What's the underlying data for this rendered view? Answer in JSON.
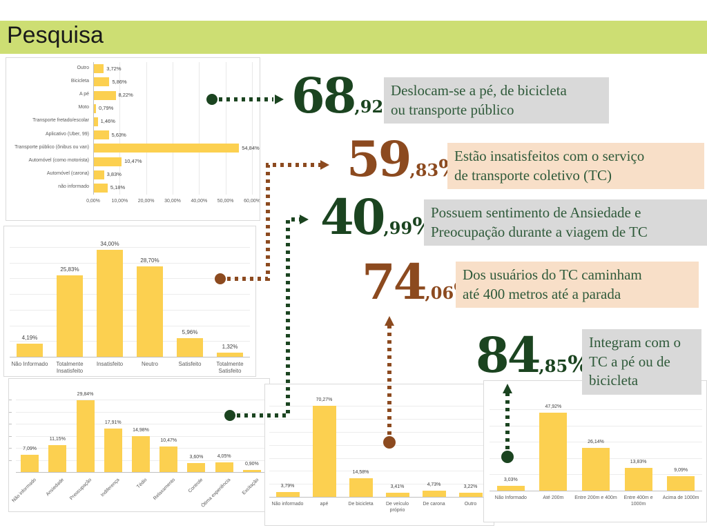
{
  "slide": {
    "title": "Pesquisa"
  },
  "colors": {
    "title_bar": "#CDDE73",
    "bar_fill": "#FCD050",
    "dark_green": "#1B4420",
    "brown": "#8C4A1F",
    "gray_box": "#D9D9D9",
    "peach_box": "#F8DFC8",
    "box_text_green": "#2F5A3A",
    "chart_label_gray": "#595959"
  },
  "chart_data": [
    {
      "type": "bar",
      "orientation": "horizontal",
      "title": "",
      "xlabel": "",
      "ylabel": "",
      "xlim": [
        0,
        60
      ],
      "categories": [
        "Outro",
        "Bicicleta",
        "A pé",
        "Moto",
        "Transporte fretado/escolar",
        "Aplicativo (Uber, 99)",
        "Transporte público (ônibus ou van)",
        "Automóvel (como motorista)",
        "Automóvel (carona)",
        "não informado"
      ],
      "values": [
        3.72,
        5.86,
        8.22,
        0.79,
        1.46,
        5.63,
        54.84,
        10.47,
        3.83,
        5.18
      ],
      "value_labels": [
        "3,72%",
        "5,86%",
        "8,22%",
        "0,79%",
        "1,46%",
        "5,63%",
        "54,84%",
        "10,47%",
        "3,83%",
        "5,18%"
      ],
      "x_ticks": [
        "0,00%",
        "10,00%",
        "20,00%",
        "30,00%",
        "40,00%",
        "50,00%",
        "60,00%"
      ]
    },
    {
      "type": "bar",
      "orientation": "vertical",
      "title": "",
      "xlabel": "",
      "ylabel": "",
      "ylim": [
        0,
        35
      ],
      "categories": [
        "Não Informado",
        "Totalmente Insatisfeito",
        "Insatisfeito",
        "Neutro",
        "Satisfeito",
        "Totalmente Satisfeito"
      ],
      "values": [
        4.19,
        25.83,
        34.0,
        28.7,
        5.96,
        1.32
      ],
      "value_labels": [
        "4,19%",
        "25,83%",
        "34,00%",
        "28,70%",
        "5,96%",
        "1,32%"
      ]
    },
    {
      "type": "bar",
      "orientation": "vertical",
      "title": "",
      "xlabel": "",
      "ylabel": "",
      "ylim": [
        0,
        30
      ],
      "categories": [
        "Não informado",
        "Ansiedade",
        "Preocupação",
        "Indiferença",
        "Tédio",
        "Relaxamento",
        "Controle",
        "Ótima experiência",
        "Excitação"
      ],
      "values": [
        7.09,
        11.15,
        29.84,
        17.91,
        14.98,
        10.47,
        3.6,
        4.05,
        0.9
      ],
      "value_labels": [
        "7,09%",
        "11,15%",
        "29,84%",
        "17,91%",
        "14,98%",
        "10,47%",
        "3,60%",
        "4,05%",
        "0,90%"
      ]
    },
    {
      "type": "bar",
      "orientation": "vertical",
      "title": "",
      "xlabel": "",
      "ylabel": "",
      "ylim": [
        0,
        70
      ],
      "categories": [
        "Não informado",
        "apé",
        "De bicicleta",
        "De veículo próprio",
        "De carona",
        "Outro"
      ],
      "values": [
        3.79,
        70.27,
        14.58,
        3.41,
        4.73,
        3.22
      ],
      "value_labels": [
        "3,79%",
        "70,27%",
        "14,58%",
        "3,41%",
        "4,73%",
        "3,22%"
      ]
    },
    {
      "type": "bar",
      "orientation": "vertical",
      "title": "",
      "xlabel": "",
      "ylabel": "",
      "ylim": [
        0,
        50
      ],
      "categories": [
        "Não Informado",
        "Até 200m",
        "Entre 200m e 400m",
        "Entre 400m e 1000m",
        "Acima de 1000m"
      ],
      "values": [
        3.03,
        47.92,
        26.14,
        13.83,
        9.09
      ],
      "value_labels": [
        "3,03%",
        "47,92%",
        "26,14%",
        "13,83%",
        "9,09%"
      ]
    }
  ],
  "callouts": [
    {
      "int": "68",
      "frac": ",92",
      "pct": "%",
      "theme": "green",
      "text": "Deslocam-se a pé, de bicicleta ou transporte público",
      "lines": [
        "Deslocam-se a pé, de bicicleta",
        "ou transporte público"
      ]
    },
    {
      "int": "59",
      "frac": ",83",
      "pct": "%",
      "theme": "brown",
      "text": "Estão insatisfeitos com o serviço de transporte coletivo (TC)",
      "lines": [
        "Estão insatisfeitos com o serviço",
        "de transporte coletivo (TC)"
      ]
    },
    {
      "int": "40",
      "frac": ",99",
      "pct": "%",
      "theme": "green",
      "text": "Possuem sentimento de Ansiedade e Preocupação durante a viagem de TC",
      "lines": [
        "Possuem sentimento de Ansiedade e",
        "Preocupação durante a viagem de TC"
      ]
    },
    {
      "int": "74",
      "frac": ",06",
      "pct": "%",
      "theme": "brown",
      "text": "Dos usuários do TC caminham até 400 metros até a parada",
      "lines": [
        "Dos usuários do TC caminham",
        "até 400 metros até a parada"
      ]
    },
    {
      "int": "84",
      "frac": ",85",
      "pct": "%",
      "theme": "green",
      "text": "Integram com o TC a pé ou de bicicleta",
      "lines": [
        "Integram com o",
        "TC a pé ou de",
        "bicicleta"
      ]
    }
  ]
}
